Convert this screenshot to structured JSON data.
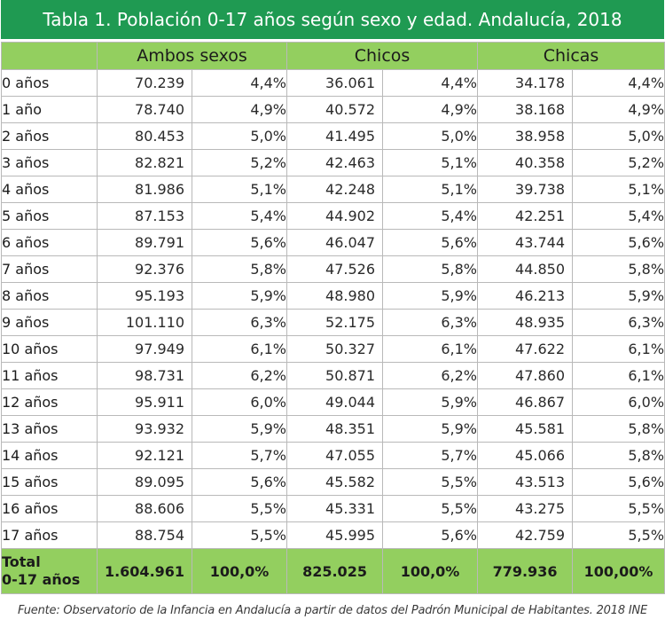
{
  "title": "Tabla 1. Población 0-17 años según sexo y edad. Andalucía, 2018",
  "header": {
    "ambos": "Ambos sexos",
    "chicos": "Chicos",
    "chicas": "Chicas"
  },
  "rows": [
    {
      "label": "0 años",
      "ambos_n": "70.239",
      "ambos_p": "4,4%",
      "chicos_n": "36.061",
      "chicos_p": "4,4%",
      "chicas_n": "34.178",
      "chicas_p": "4,4%"
    },
    {
      "label": "1 año",
      "ambos_n": "78.740",
      "ambos_p": "4,9%",
      "chicos_n": "40.572",
      "chicos_p": "4,9%",
      "chicas_n": "38.168",
      "chicas_p": "4,9%"
    },
    {
      "label": "2 años",
      "ambos_n": "80.453",
      "ambos_p": "5,0%",
      "chicos_n": "41.495",
      "chicos_p": "5,0%",
      "chicas_n": "38.958",
      "chicas_p": "5,0%"
    },
    {
      "label": "3 años",
      "ambos_n": "82.821",
      "ambos_p": "5,2%",
      "chicos_n": "42.463",
      "chicos_p": "5,1%",
      "chicas_n": "40.358",
      "chicas_p": "5,2%"
    },
    {
      "label": "4 años",
      "ambos_n": "81.986",
      "ambos_p": "5,1%",
      "chicos_n": "42.248",
      "chicos_p": "5,1%",
      "chicas_n": "39.738",
      "chicas_p": "5,1%"
    },
    {
      "label": "5 años",
      "ambos_n": "87.153",
      "ambos_p": "5,4%",
      "chicos_n": "44.902",
      "chicos_p": "5,4%",
      "chicas_n": "42.251",
      "chicas_p": "5,4%"
    },
    {
      "label": "6 años",
      "ambos_n": "89.791",
      "ambos_p": "5,6%",
      "chicos_n": "46.047",
      "chicos_p": "5,6%",
      "chicas_n": "43.744",
      "chicas_p": "5,6%"
    },
    {
      "label": "7 años",
      "ambos_n": "92.376",
      "ambos_p": "5,8%",
      "chicos_n": "47.526",
      "chicos_p": "5,8%",
      "chicas_n": "44.850",
      "chicas_p": "5,8%"
    },
    {
      "label": "8 años",
      "ambos_n": "95.193",
      "ambos_p": "5,9%",
      "chicos_n": "48.980",
      "chicos_p": "5,9%",
      "chicas_n": "46.213",
      "chicas_p": "5,9%"
    },
    {
      "label": "9 años",
      "ambos_n": "101.110",
      "ambos_p": "6,3%",
      "chicos_n": "52.175",
      "chicos_p": "6,3%",
      "chicas_n": "48.935",
      "chicas_p": "6,3%"
    },
    {
      "label": "10 años",
      "ambos_n": "97.949",
      "ambos_p": "6,1%",
      "chicos_n": "50.327",
      "chicos_p": "6,1%",
      "chicas_n": "47.622",
      "chicas_p": "6,1%"
    },
    {
      "label": "11 años",
      "ambos_n": "98.731",
      "ambos_p": "6,2%",
      "chicos_n": "50.871",
      "chicos_p": "6,2%",
      "chicas_n": "47.860",
      "chicas_p": "6,1%"
    },
    {
      "label": "12 años",
      "ambos_n": "95.911",
      "ambos_p": "6,0%",
      "chicos_n": "49.044",
      "chicos_p": "5,9%",
      "chicas_n": "46.867",
      "chicas_p": "6,0%"
    },
    {
      "label": "13 años",
      "ambos_n": "93.932",
      "ambos_p": "5,9%",
      "chicos_n": "48.351",
      "chicos_p": "5,9%",
      "chicas_n": "45.581",
      "chicas_p": "5,8%"
    },
    {
      "label": "14 años",
      "ambos_n": "92.121",
      "ambos_p": "5,7%",
      "chicos_n": "47.055",
      "chicos_p": "5,7%",
      "chicas_n": "45.066",
      "chicas_p": "5,8%"
    },
    {
      "label": "15 años",
      "ambos_n": "89.095",
      "ambos_p": "5,6%",
      "chicos_n": "45.582",
      "chicos_p": "5,5%",
      "chicas_n": "43.513",
      "chicas_p": "5,6%"
    },
    {
      "label": "16 años",
      "ambos_n": "88.606",
      "ambos_p": "5,5%",
      "chicos_n": "45.331",
      "chicos_p": "5,5%",
      "chicas_n": "43.275",
      "chicas_p": "5,5%"
    },
    {
      "label": "17 años",
      "ambos_n": "88.754",
      "ambos_p": "5,5%",
      "chicos_n": "45.995",
      "chicos_p": "5,6%",
      "chicas_n": "42.759",
      "chicas_p": "5,5%"
    }
  ],
  "total": {
    "label_line1": "Total",
    "label_line2": "0-17 años",
    "ambos_n": "1.604.961",
    "ambos_p": "100,0%",
    "chicos_n": "825.025",
    "chicos_p": "100,0%",
    "chicas_n": "779.936",
    "chicas_p": "100,00%"
  },
  "source": "Fuente: Observatorio de la Infancia en Andalucía a partir de datos del Padrón Municipal de Habitantes. 2018 INE",
  "colors": {
    "title_bg": "#1f9a52",
    "header_bg": "#93cf5f",
    "border": "#b9b9b9"
  }
}
